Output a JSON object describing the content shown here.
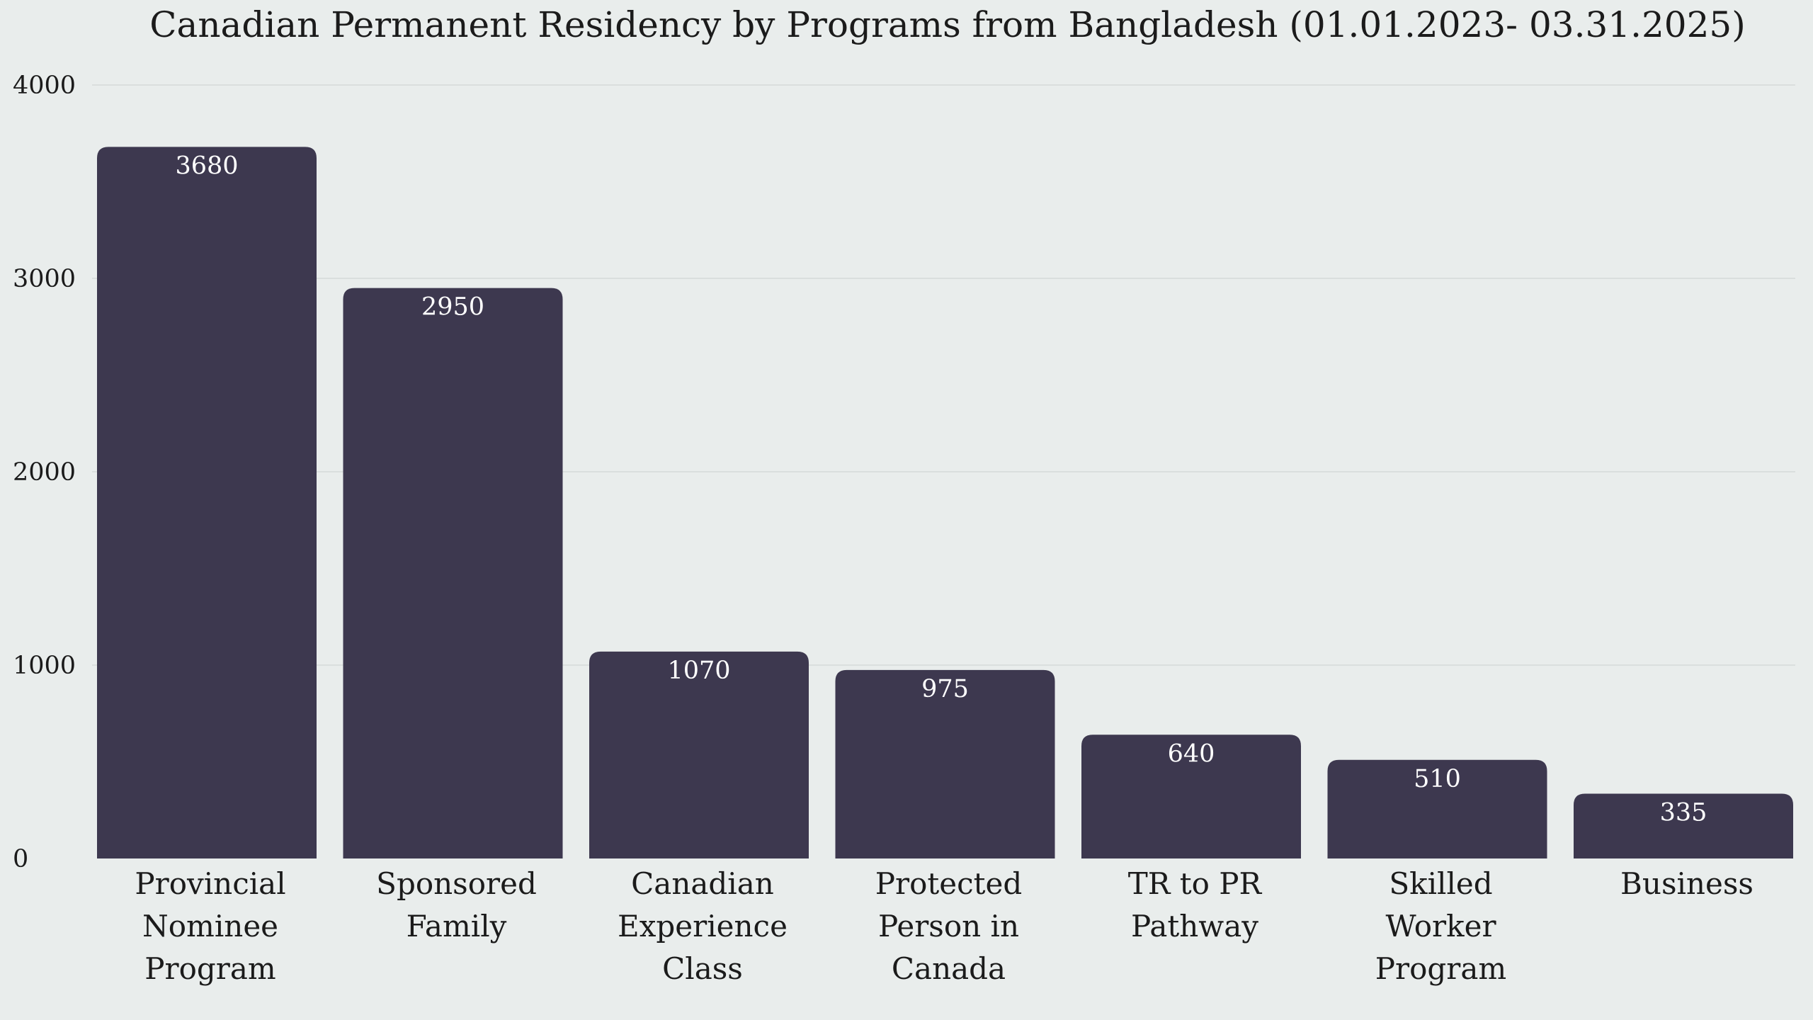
{
  "chart_data": {
    "type": "bar",
    "title": "Canadian Permanent Residency by Programs from Bangladesh (01.01.2023- 03.31.2025)",
    "xlabel": "",
    "ylabel": "",
    "ylim": [
      0,
      4000
    ],
    "yticks": [
      0,
      1000,
      2000,
      3000,
      4000
    ],
    "grid": true,
    "categories": [
      [
        "Provincial",
        "Nominee",
        "Program"
      ],
      [
        "Sponsored",
        "Family"
      ],
      [
        "Canadian",
        "Experience",
        "Class"
      ],
      [
        "Protected",
        "Person in",
        "Canada"
      ],
      [
        "TR to PR",
        "Pathway"
      ],
      [
        "Skilled",
        "Worker",
        "Program"
      ],
      [
        "Business"
      ]
    ],
    "values": [
      3680,
      2950,
      1070,
      975,
      640,
      510,
      335
    ],
    "colors": {
      "bar": "#3d384f",
      "background": "#e9edec",
      "gridline": "#dadfde",
      "value_label": "#ffffff"
    }
  }
}
